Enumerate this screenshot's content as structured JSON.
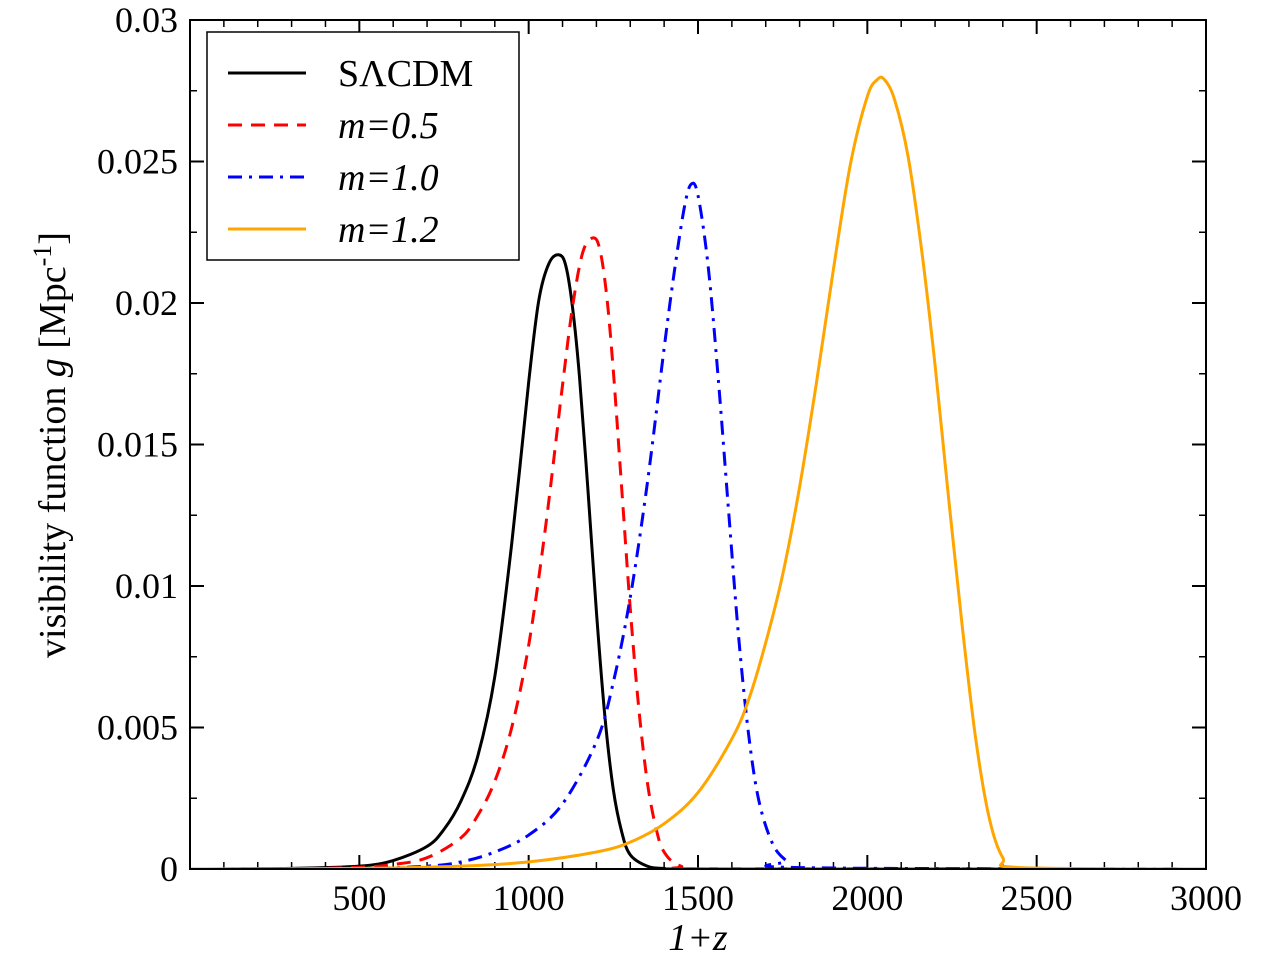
{
  "chart_data": {
    "type": "line",
    "xlabel": "1+z",
    "ylabel": {
      "prefix": "visibility function ",
      "symbol": "g",
      "unit_pre": " [Mpc",
      "unit_sup": "-1",
      "unit_post": "]"
    },
    "xlim": [
      0,
      3000
    ],
    "ylim": [
      0,
      0.03
    ],
    "x_ticks": [
      500,
      1000,
      1500,
      2000,
      2500,
      3000
    ],
    "x_tick_labels": [
      "500",
      "1000",
      "1500",
      "2000",
      "2500",
      "3000"
    ],
    "y_ticks": [
      0,
      0.005,
      0.01,
      0.015,
      0.02,
      0.025,
      0.03
    ],
    "y_tick_labels": [
      "0",
      "0.005",
      "0.01",
      "0.015",
      "0.02",
      "0.025",
      "0.03"
    ],
    "grid": false,
    "legend_position": "top-left",
    "series": [
      {
        "name": "SΛCDM",
        "color": "#000000",
        "dash": "solid",
        "italic": false,
        "x": [
          0,
          300,
          500,
          600,
          700,
          750,
          800,
          850,
          900,
          950,
          1000,
          1030,
          1060,
          1090,
          1110,
          1130,
          1150,
          1175,
          1200,
          1225,
          1250,
          1275,
          1300,
          1350,
          1400,
          1500,
          3000
        ],
        "y": [
          0,
          2e-05,
          0.0001,
          0.0003,
          0.0008,
          0.0014,
          0.0024,
          0.004,
          0.0068,
          0.0115,
          0.0172,
          0.0201,
          0.0214,
          0.0217,
          0.0213,
          0.0198,
          0.0174,
          0.0134,
          0.0091,
          0.0054,
          0.0028,
          0.0013,
          0.0005,
          0.0001,
          2e-05,
          0,
          0
        ]
      },
      {
        "name": "m=0.5",
        "color": "#ff0000",
        "dash": "dashed",
        "italic": true,
        "x": [
          0,
          300,
          500,
          600,
          700,
          800,
          850,
          900,
          950,
          1000,
          1050,
          1100,
          1130,
          1160,
          1190,
          1210,
          1230,
          1250,
          1275,
          1300,
          1325,
          1350,
          1375,
          1400,
          1450,
          1550,
          3000
        ],
        "y": [
          0,
          1e-05,
          6e-05,
          0.00016,
          0.0004,
          0.0011,
          0.0019,
          0.0031,
          0.005,
          0.0079,
          0.0121,
          0.0171,
          0.0199,
          0.0218,
          0.0223,
          0.0219,
          0.0203,
          0.0176,
          0.0134,
          0.0092,
          0.0057,
          0.0031,
          0.0015,
          0.0006,
          0.0001,
          0,
          0
        ]
      },
      {
        "name": "m=1.0",
        "color": "#0000ff",
        "dash": "dashdot",
        "italic": true,
        "x": [
          0,
          500,
          700,
          800,
          900,
          1000,
          1100,
          1200,
          1250,
          1300,
          1350,
          1400,
          1430,
          1460,
          1480,
          1500,
          1530,
          1560,
          1590,
          1620,
          1650,
          1680,
          1720,
          1760,
          1800,
          3000
        ],
        "y": [
          0,
          2e-05,
          0.0001,
          0.00025,
          0.0006,
          0.0012,
          0.0023,
          0.0045,
          0.0066,
          0.0096,
          0.0136,
          0.0184,
          0.0211,
          0.0234,
          0.0242,
          0.0238,
          0.0213,
          0.0173,
          0.0127,
          0.0082,
          0.0047,
          0.0024,
          0.0009,
          0.0003,
          5e-05,
          0
        ]
      },
      {
        "name": "m=1.2",
        "color": "#ffa500",
        "dash": "solid",
        "italic": true,
        "x": [
          0,
          500,
          800,
          1000,
          1200,
          1300,
          1400,
          1500,
          1600,
          1650,
          1700,
          1750,
          1800,
          1850,
          1900,
          1950,
          2000,
          2030,
          2050,
          2080,
          2120,
          2160,
          2200,
          2240,
          2280,
          2320,
          2360,
          2400,
          2450,
          3000
        ],
        "y": [
          0,
          2e-05,
          0.0001,
          0.00025,
          0.0006,
          0.00095,
          0.0016,
          0.0027,
          0.0046,
          0.006,
          0.008,
          0.0104,
          0.0135,
          0.0172,
          0.0212,
          0.0249,
          0.0273,
          0.0279,
          0.0279,
          0.0272,
          0.0252,
          0.0219,
          0.0178,
          0.0131,
          0.0086,
          0.0046,
          0.0018,
          0.0004,
          5e-05,
          0
        ]
      }
    ]
  }
}
